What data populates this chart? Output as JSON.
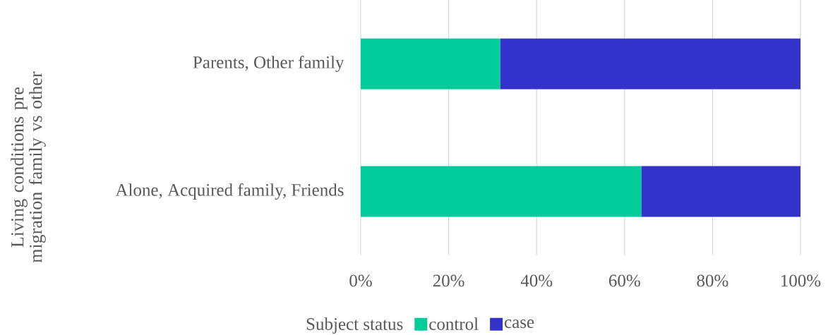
{
  "chart_data": {
    "type": "bar",
    "orientation": "horizontal",
    "stacked": true,
    "ylabel": "Living conditions pre migration family vs other",
    "legend_title": "Subject status",
    "categories": [
      "Parents, Other family",
      "Alone, Acquired family, Friends"
    ],
    "series": [
      {
        "name": "control",
        "color": "#00cc99",
        "values": [
          31.7,
          63.8
        ]
      },
      {
        "name": "case",
        "color": "#3333cc",
        "values": [
          68.3,
          36.2
        ]
      }
    ],
    "xlim": [
      0,
      100
    ],
    "xticks": [
      {
        "value": 0,
        "label": "0%"
      },
      {
        "value": 20,
        "label": "20%"
      },
      {
        "value": 40,
        "label": "40%"
      },
      {
        "value": 60,
        "label": "60%"
      },
      {
        "value": 80,
        "label": "80%"
      },
      {
        "value": 100,
        "label": "100%"
      }
    ],
    "grid": "x",
    "legend": "bottom"
  }
}
